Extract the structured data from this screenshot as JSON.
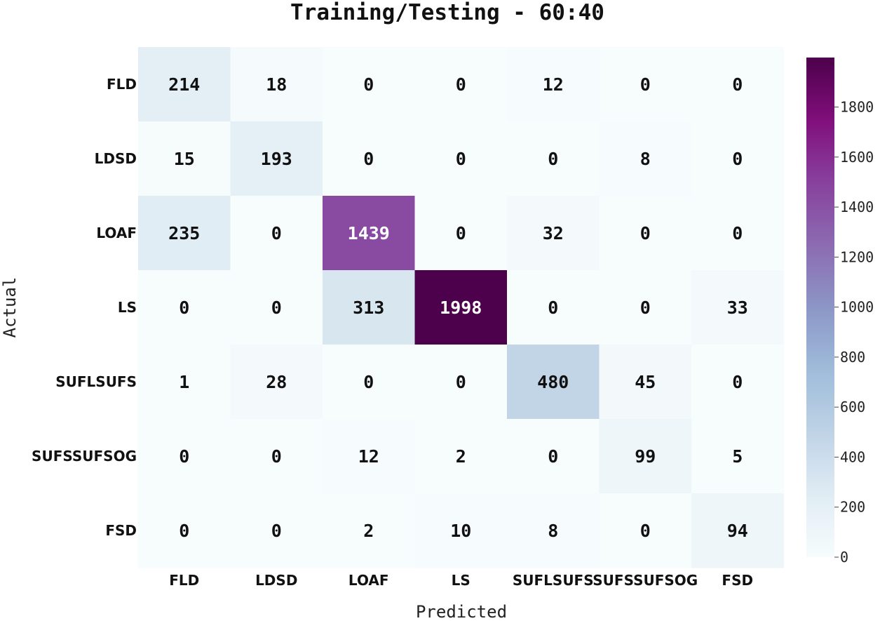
{
  "chart_data": {
    "type": "heatmap",
    "title": "Training/Testing - 60:40",
    "xlabel": "Predicted",
    "ylabel": "Actual",
    "x_categories": [
      "FLD",
      "LDSD",
      "LOAF",
      "LS",
      "SUFLSUFS",
      "SUFSSUFSOG",
      "FSD"
    ],
    "y_categories": [
      "FLD",
      "LDSD",
      "LOAF",
      "LS",
      "SUFLSUFS",
      "SUFSSUFSOG",
      "FSD"
    ],
    "values": [
      [
        214,
        18,
        0,
        0,
        12,
        0,
        0
      ],
      [
        15,
        193,
        0,
        0,
        0,
        8,
        0
      ],
      [
        235,
        0,
        1439,
        0,
        32,
        0,
        0
      ],
      [
        0,
        0,
        313,
        1998,
        0,
        0,
        33
      ],
      [
        1,
        28,
        0,
        0,
        480,
        45,
        0
      ],
      [
        0,
        0,
        12,
        2,
        0,
        99,
        5
      ],
      [
        0,
        0,
        2,
        10,
        8,
        0,
        94
      ]
    ],
    "colorbar": {
      "min": 0,
      "max": 1998,
      "ticks": [
        0,
        200,
        400,
        600,
        800,
        1000,
        1200,
        1400,
        1600,
        1800
      ],
      "colormap": "BuPu",
      "colors": [
        "#f7fcfd",
        "#e0ecf4",
        "#bfd3e6",
        "#9ebcda",
        "#8c96c6",
        "#8c6bb1",
        "#88419d",
        "#810f7c",
        "#4d004b"
      ]
    },
    "annotation_colors": {
      "dark_text": "#111111",
      "light_text": "#ffffff"
    }
  }
}
